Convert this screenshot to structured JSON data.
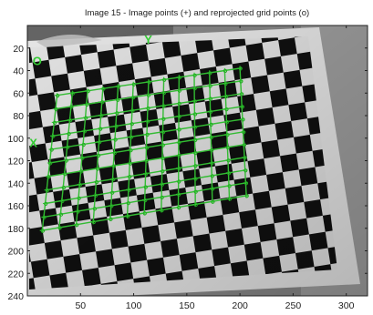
{
  "chart_data": {
    "type": "scatter",
    "title": "Image 15 - Image points (+) and reprojected grid points (o)",
    "xlabel": "",
    "ylabel": "",
    "xlim": [
      0,
      320
    ],
    "ylim": [
      0,
      240
    ],
    "y_axis_reversed": true,
    "grid": false,
    "legend": "none",
    "x_ticks": [
      "50",
      "100",
      "150",
      "200",
      "250",
      "300"
    ],
    "y_ticks": [
      "20",
      "40",
      "60",
      "80",
      "100",
      "120",
      "140",
      "160",
      "180",
      "200",
      "220",
      "240"
    ],
    "annotations": [
      {
        "text": "O",
        "x": 5,
        "y": 35
      },
      {
        "text": "Y",
        "x": 110,
        "y": 16
      },
      {
        "text": "X",
        "x": 2,
        "y": 108
      }
    ],
    "background": "grayscale photograph of a black-and-white checkerboard calibration target",
    "grid_corners": {
      "origin": [
        28,
        62
      ],
      "x_end": [
        14,
        182
      ],
      "y_end": [
        200,
        38
      ],
      "far": [
        206,
        151
      ],
      "nx": 10,
      "ny": 12
    },
    "colors": {
      "points": "#33cc33",
      "reprojected": "#22aa22",
      "axes": "#222222"
    }
  }
}
